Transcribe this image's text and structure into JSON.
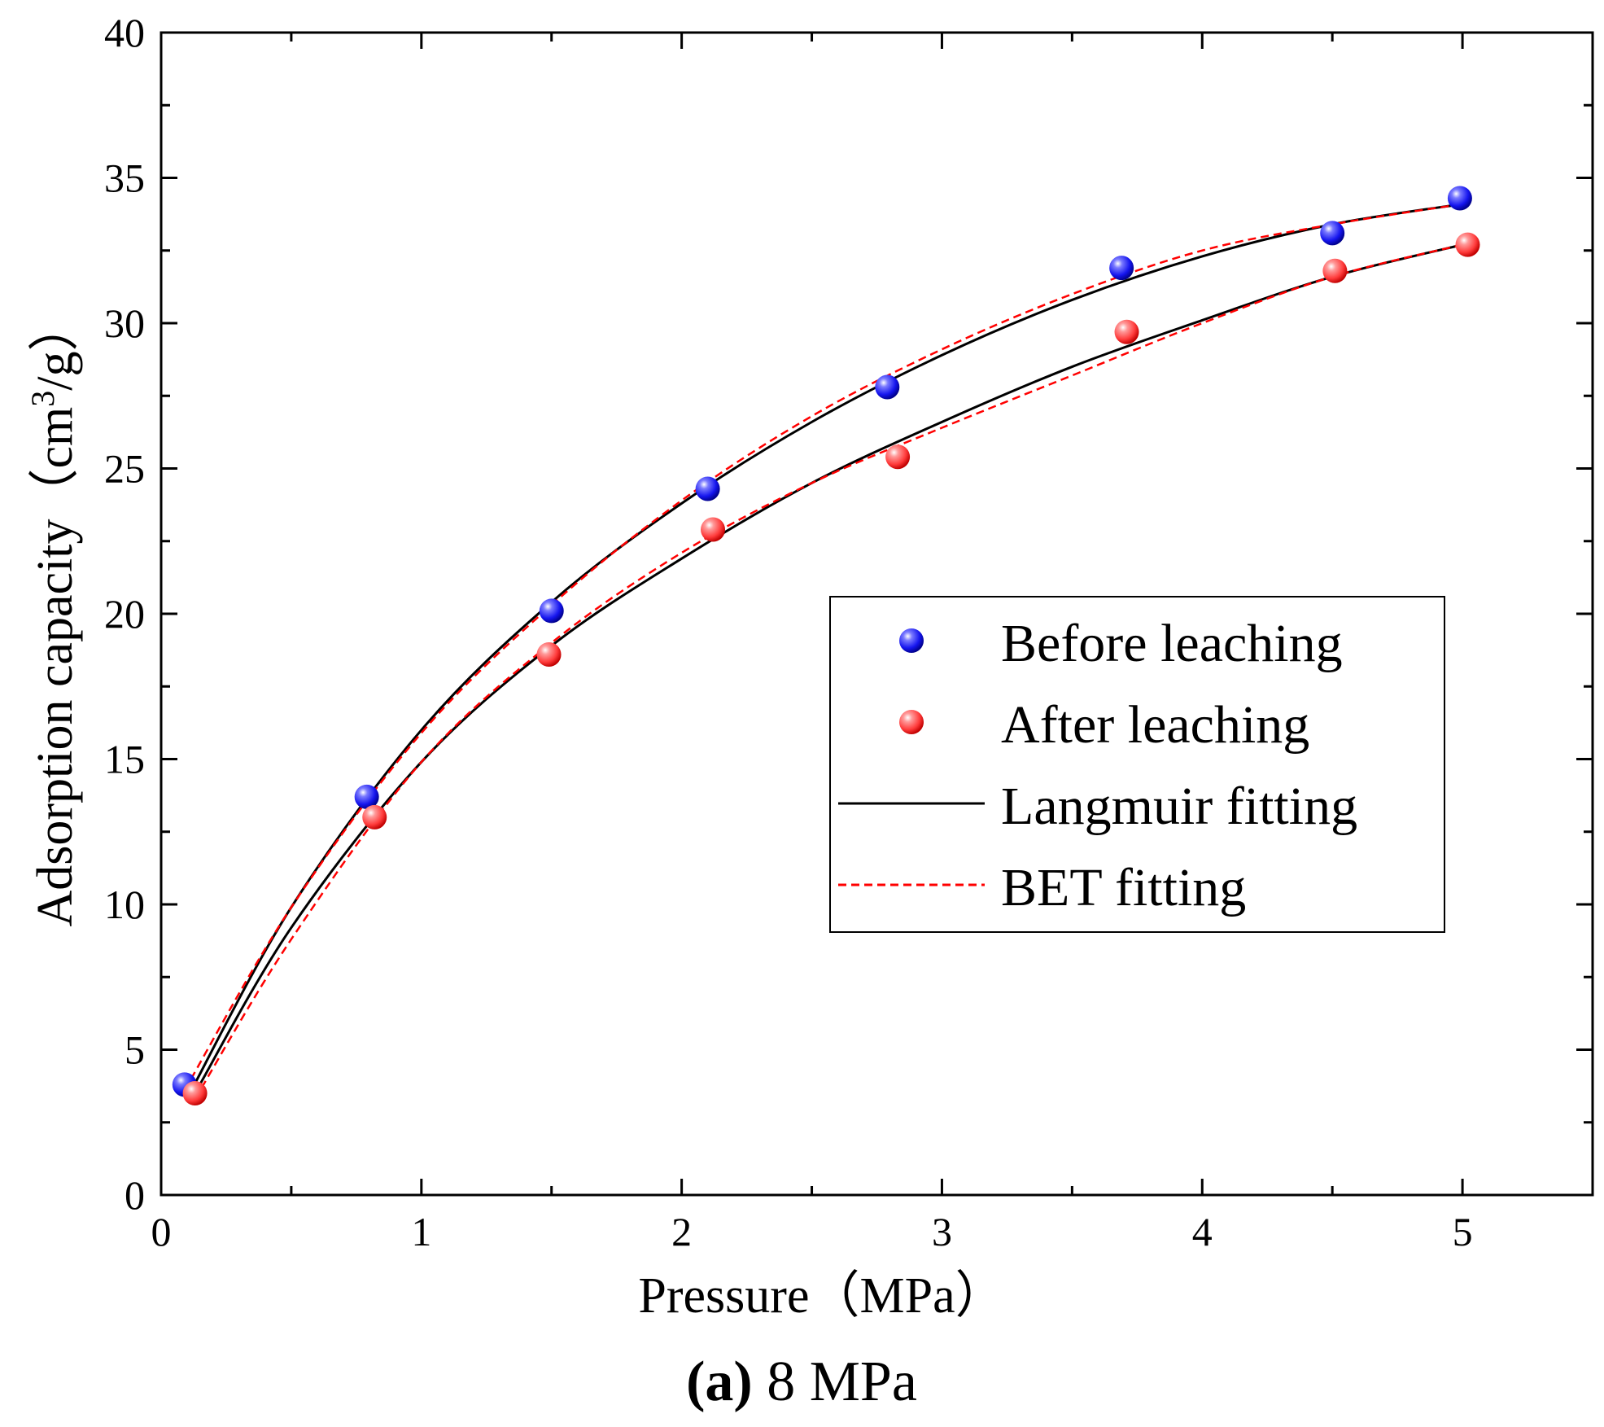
{
  "chart_data": {
    "type": "scatter",
    "xlabel": "Pressure（MPa）",
    "ylabel_main": "Adsorption capacity（cm",
    "ylabel_sup": "3",
    "ylabel_tail": "/g）",
    "xlim": [
      0,
      5.5
    ],
    "ylim": [
      0,
      40
    ],
    "xticks": [
      0,
      1,
      2,
      3,
      4,
      5
    ],
    "yticks": [
      0,
      5,
      10,
      15,
      20,
      25,
      30,
      35,
      40
    ],
    "grid": false,
    "legend_position": "center-right",
    "caption_bold": "(a)",
    "caption_rest": " 8 MPa",
    "legend": {
      "before": "Before leaching",
      "after": "After leaching",
      "langmuir": "Langmuir fitting",
      "bet": "BET fitting"
    },
    "series": [
      {
        "name": "Before leaching",
        "kind": "points",
        "color": "#1a1aff",
        "x": [
          0.09,
          0.79,
          1.5,
          2.1,
          2.79,
          3.69,
          4.5,
          4.99
        ],
        "y": [
          3.8,
          13.7,
          20.1,
          24.3,
          27.8,
          31.9,
          33.1,
          34.3
        ]
      },
      {
        "name": "After leaching",
        "kind": "points",
        "color": "#ff4a4a",
        "x": [
          0.13,
          0.82,
          1.49,
          2.12,
          2.83,
          3.71,
          4.51,
          5.02
        ],
        "y": [
          3.5,
          13.0,
          18.6,
          22.9,
          25.4,
          29.7,
          31.8,
          32.7
        ]
      },
      {
        "name": "Langmuir fitting (before)",
        "kind": "line",
        "color": "#000000",
        "x": [
          0.11,
          0.5,
          1.0,
          1.5,
          2.0,
          2.5,
          3.0,
          3.5,
          4.0,
          4.5,
          5.0
        ],
        "y": [
          3.5,
          9.9,
          16.0,
          20.4,
          23.8,
          26.6,
          28.9,
          30.8,
          32.3,
          33.4,
          34.1
        ]
      },
      {
        "name": "Langmuir fitting (after)",
        "kind": "line",
        "color": "#000000",
        "x": [
          0.13,
          0.5,
          1.0,
          1.5,
          2.0,
          2.5,
          3.0,
          3.5,
          4.0,
          4.5,
          5.0
        ],
        "y": [
          3.5,
          9.2,
          14.9,
          18.9,
          21.9,
          24.5,
          26.6,
          28.5,
          30.1,
          31.6,
          32.7
        ]
      },
      {
        "name": "BET fitting (before)",
        "kind": "dashed",
        "color": "#ff0000",
        "x": [
          0.09,
          0.5,
          1.0,
          1.5,
          2.0,
          2.5,
          3.0,
          3.5,
          4.0,
          4.5,
          5.0
        ],
        "y": [
          3.6,
          9.9,
          15.9,
          20.3,
          23.9,
          26.8,
          29.1,
          31.0,
          32.5,
          33.4,
          34.1
        ]
      },
      {
        "name": "BET fitting (after)",
        "kind": "dashed",
        "color": "#ff0000",
        "x": [
          0.13,
          0.5,
          1.0,
          1.5,
          2.0,
          2.5,
          3.0,
          3.5,
          4.0,
          4.5,
          5.0
        ],
        "y": [
          3.3,
          8.8,
          14.9,
          19.0,
          22.1,
          24.5,
          26.4,
          28.2,
          30.0,
          31.6,
          32.7
        ]
      }
    ]
  }
}
